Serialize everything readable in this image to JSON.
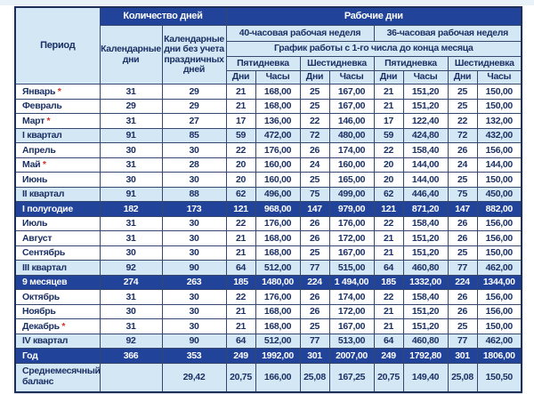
{
  "colors": {
    "dark_blue": "#21439a",
    "light_blue": "#d3e7f4",
    "text_navy": "#1b3064",
    "border_navy": "#33476f",
    "asterisk_red": "#d93025"
  },
  "table": {
    "header": {
      "period": "Период",
      "days_count": "Количество дней",
      "calendar_days": "Календарные дни",
      "calendar_days_no_holidays": "Календарные дни без учета праздничных дней",
      "working_days": "Рабочие дни",
      "week40": "40-часовая рабочая неделя",
      "week36": "36-часовая рабочая неделя",
      "schedule_note": "График работы с 1-го числа до конца месяца",
      "five_day": "Пятидневка",
      "six_day": "Шестидневка",
      "days": "Дни",
      "hours": "Часы"
    },
    "rows": [
      {
        "label": "Январь",
        "mark": " *",
        "type": "month",
        "values": [
          "31",
          "29",
          "21",
          "168,00",
          "25",
          "167,00",
          "21",
          "151,20",
          "25",
          "150,00"
        ]
      },
      {
        "label": "Февраль",
        "mark": "",
        "type": "month",
        "values": [
          "29",
          "29",
          "21",
          "168,00",
          "25",
          "167,00",
          "21",
          "151,20",
          "25",
          "150,00"
        ]
      },
      {
        "label": "Март",
        "mark": " *",
        "type": "month",
        "values": [
          "31",
          "27",
          "17",
          "136,00",
          "22",
          "146,00",
          "17",
          "122,40",
          "22",
          "132,00"
        ]
      },
      {
        "label": "I квартал",
        "mark": "",
        "type": "quarter",
        "values": [
          "91",
          "85",
          "59",
          "472,00",
          "72",
          "480,00",
          "59",
          "424,80",
          "72",
          "432,00"
        ]
      },
      {
        "label": "Апрель",
        "mark": "",
        "type": "month",
        "values": [
          "30",
          "30",
          "22",
          "176,00",
          "26",
          "174,00",
          "22",
          "158,40",
          "26",
          "156,00"
        ]
      },
      {
        "label": "Май",
        "mark": " *",
        "type": "month",
        "values": [
          "31",
          "28",
          "20",
          "160,00",
          "24",
          "160,00",
          "20",
          "144,00",
          "24",
          "144,00"
        ]
      },
      {
        "label": "Июнь",
        "mark": "",
        "type": "month",
        "values": [
          "30",
          "30",
          "20",
          "160,00",
          "25",
          "165,00",
          "20",
          "144,00",
          "25",
          "150,00"
        ]
      },
      {
        "label": "II квартал",
        "mark": "",
        "type": "quarter",
        "values": [
          "91",
          "88",
          "62",
          "496,00",
          "75",
          "499,00",
          "62",
          "446,40",
          "75",
          "450,00"
        ]
      },
      {
        "label": "I полугодие",
        "mark": "",
        "type": "total",
        "values": [
          "182",
          "173",
          "121",
          "968,00",
          "147",
          "979,00",
          "121",
          "871,20",
          "147",
          "882,00"
        ]
      },
      {
        "label": "Июль",
        "mark": "",
        "type": "month",
        "values": [
          "31",
          "30",
          "22",
          "176,00",
          "26",
          "176,00",
          "22",
          "158,40",
          "26",
          "156,00"
        ]
      },
      {
        "label": "Август",
        "mark": "",
        "type": "month",
        "values": [
          "31",
          "30",
          "21",
          "168,00",
          "26",
          "172,00",
          "21",
          "151,20",
          "26",
          "156,00"
        ]
      },
      {
        "label": "Сентябрь",
        "mark": "",
        "type": "month",
        "values": [
          "30",
          "30",
          "21",
          "168,00",
          "25",
          "167,00",
          "21",
          "151,20",
          "25",
          "150,00"
        ]
      },
      {
        "label": "III квартал",
        "mark": "",
        "type": "quarter",
        "values": [
          "92",
          "90",
          "64",
          "512,00",
          "77",
          "515,00",
          "64",
          "460,80",
          "77",
          "462,00"
        ]
      },
      {
        "label": "9 месяцев",
        "mark": "",
        "type": "total",
        "values": [
          "274",
          "263",
          "185",
          "1480,00",
          "224",
          "1 494,00",
          "185",
          "1332,00",
          "224",
          "1344,00"
        ]
      },
      {
        "label": "Октябрь",
        "mark": "",
        "type": "month",
        "values": [
          "31",
          "30",
          "22",
          "176,00",
          "26",
          "174,00",
          "22",
          "158,40",
          "26",
          "156,00"
        ]
      },
      {
        "label": "Ноябрь",
        "mark": "",
        "type": "month",
        "values": [
          "30",
          "30",
          "21",
          "168,00",
          "26",
          "172,00",
          "21",
          "151,20",
          "26",
          "156,00"
        ]
      },
      {
        "label": "Декабрь",
        "mark": " *",
        "type": "month",
        "values": [
          "31",
          "30",
          "21",
          "168,00",
          "25",
          "167,00",
          "21",
          "151,20",
          "25",
          "150,00"
        ]
      },
      {
        "label": "IV квартал",
        "mark": "",
        "type": "quarter",
        "values": [
          "92",
          "90",
          "64",
          "512,00",
          "77",
          "513,00",
          "64",
          "460,80",
          "77",
          "462,00"
        ]
      },
      {
        "label": "Год",
        "mark": "",
        "type": "total",
        "values": [
          "366",
          "353",
          "249",
          "1992,00",
          "301",
          "2007,00",
          "249",
          "1792,80",
          "301",
          "1806,00"
        ]
      },
      {
        "label": "Среднемесячный баланс",
        "mark": "",
        "type": "balance",
        "values": [
          "",
          "29,42",
          "20,75",
          "166,00",
          "25,08",
          "167,25",
          "20,75",
          "149,40",
          "25,08",
          "150,50"
        ]
      }
    ]
  }
}
